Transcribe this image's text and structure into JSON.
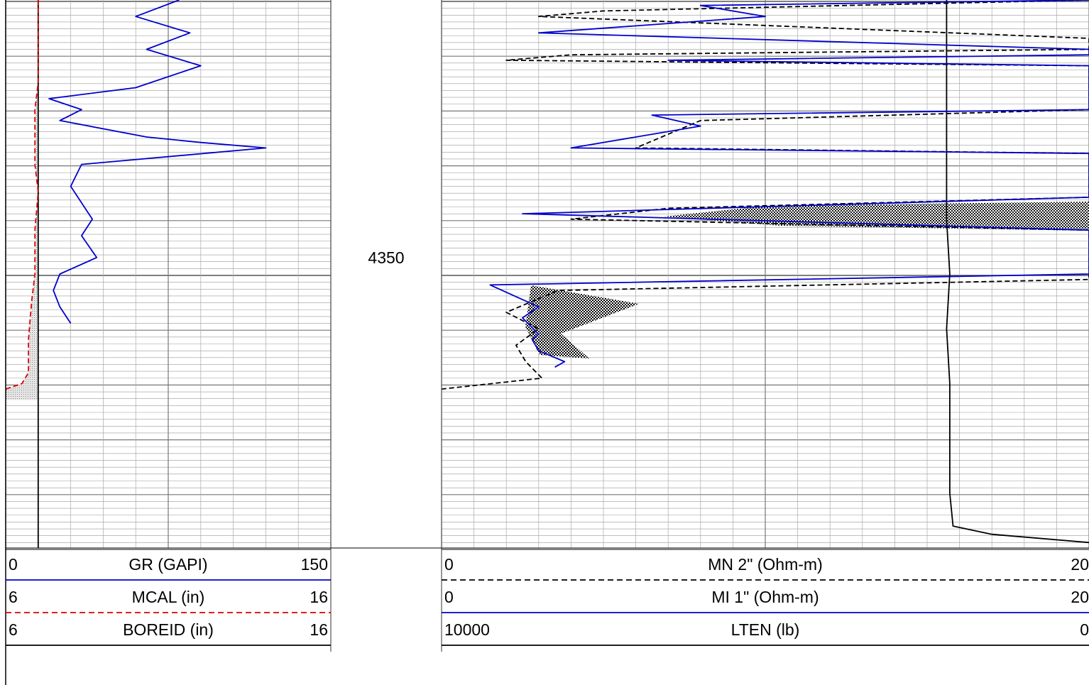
{
  "depth_track": {
    "label": "4350"
  },
  "track1": {
    "curves": [
      {
        "name": "GR (GAPI)",
        "min": "0",
        "max": "150",
        "color": "#0000cc",
        "style": "solid"
      },
      {
        "name": "MCAL (in)",
        "min": "6",
        "max": "16",
        "color": "#dd0000",
        "style": "dashed"
      },
      {
        "name": "BOREID (in)",
        "min": "6",
        "max": "16",
        "color": "#000000",
        "style": "solid"
      }
    ]
  },
  "track2": {
    "curves": [
      {
        "name": "MN 2\" (Ohm-m)",
        "min": "0",
        "max": "20",
        "color": "#000000",
        "style": "dashed"
      },
      {
        "name": "MI 1\" (Ohm-m)",
        "min": "0",
        "max": "20",
        "color": "#0000cc",
        "style": "solid"
      },
      {
        "name": "LTEN (lb)",
        "min": "10000",
        "max": "0",
        "color": "#000000",
        "style": "solid"
      }
    ]
  },
  "chart_data": {
    "type": "line",
    "depth_label": 4350,
    "tracks": [
      {
        "series": [
          {
            "name": "GR (GAPI)",
            "xlim": [
              0,
              150
            ],
            "x": [
              80,
              60,
              85,
              65,
              90,
              60,
              20,
              35,
              25,
              65,
              90,
              120,
              35,
              30,
              40,
              35,
              42,
              25,
              22,
              25,
              30
            ],
            "depth": [
              0,
              0.03,
              0.06,
              0.09,
              0.12,
              0.16,
              0.18,
              0.2,
              0.22,
              0.25,
              0.26,
              0.27,
              0.3,
              0.34,
              0.4,
              0.43,
              0.47,
              0.5,
              0.53,
              0.56,
              0.59
            ]
          },
          {
            "name": "MCAL (in)",
            "xlim": [
              6,
              16
            ],
            "x": [
              7.0,
              7.0,
              7.0,
              6.9,
              6.9,
              7.0,
              6.9,
              6.9,
              6.8,
              6.7,
              6.7,
              6.5,
              6.0
            ],
            "depth": [
              0,
              0.1,
              0.15,
              0.2,
              0.3,
              0.35,
              0.42,
              0.5,
              0.55,
              0.62,
              0.68,
              0.7,
              0.71
            ]
          },
          {
            "name": "BOREID (in)",
            "xlim": [
              6,
              16
            ],
            "x": [
              7.0,
              7.0
            ],
            "depth": [
              0,
              1
            ]
          }
        ]
      },
      {
        "series": [
          {
            "name": "MN 2\" (Ohm-m)",
            "xlim": [
              0,
              20
            ],
            "x": [
              20,
              5,
              3,
              20,
              20,
              4,
              2,
              20,
              20,
              8,
              6,
              20,
              20,
              7,
              4,
              20,
              20,
              3.6,
              2,
              3,
              2.3,
              2.6,
              3.1,
              0
            ],
            "depth": [
              0.0,
              0.02,
              0.03,
              0.07,
              0.09,
              0.1,
              0.11,
              0.12,
              0.2,
              0.22,
              0.27,
              0.28,
              0.36,
              0.38,
              0.4,
              0.42,
              0.51,
              0.53,
              0.57,
              0.6,
              0.63,
              0.66,
              0.69,
              0.71
            ]
          },
          {
            "name": "MI 1\" (Ohm-m)",
            "xlim": [
              0,
              20
            ],
            "x": [
              20,
              8,
              10,
              3,
              20,
              20,
              7,
              20,
              20,
              6.5,
              8,
              4,
              20,
              20,
              2.5,
              20,
              20,
              1.5,
              3,
              2.5,
              3,
              2.8,
              3,
              3.8,
              3.5
            ],
            "depth": [
              0.0,
              0.01,
              0.03,
              0.06,
              0.09,
              0.1,
              0.11,
              0.12,
              0.2,
              0.21,
              0.23,
              0.27,
              0.28,
              0.36,
              0.39,
              0.42,
              0.5,
              0.52,
              0.56,
              0.58,
              0.61,
              0.62,
              0.64,
              0.66,
              0.67
            ]
          },
          {
            "name": "LTEN (lb)",
            "xlim": [
              10000,
              0
            ],
            "x": [
              2200,
              2200,
              2200,
              2150,
              2200,
              2150,
              2150,
              2150,
              2100,
              1500,
              0
            ],
            "depth": [
              0,
              0.2,
              0.4,
              0.5,
              0.6,
              0.7,
              0.8,
              0.9,
              0.96,
              0.975,
              0.99
            ]
          }
        ]
      }
    ]
  }
}
